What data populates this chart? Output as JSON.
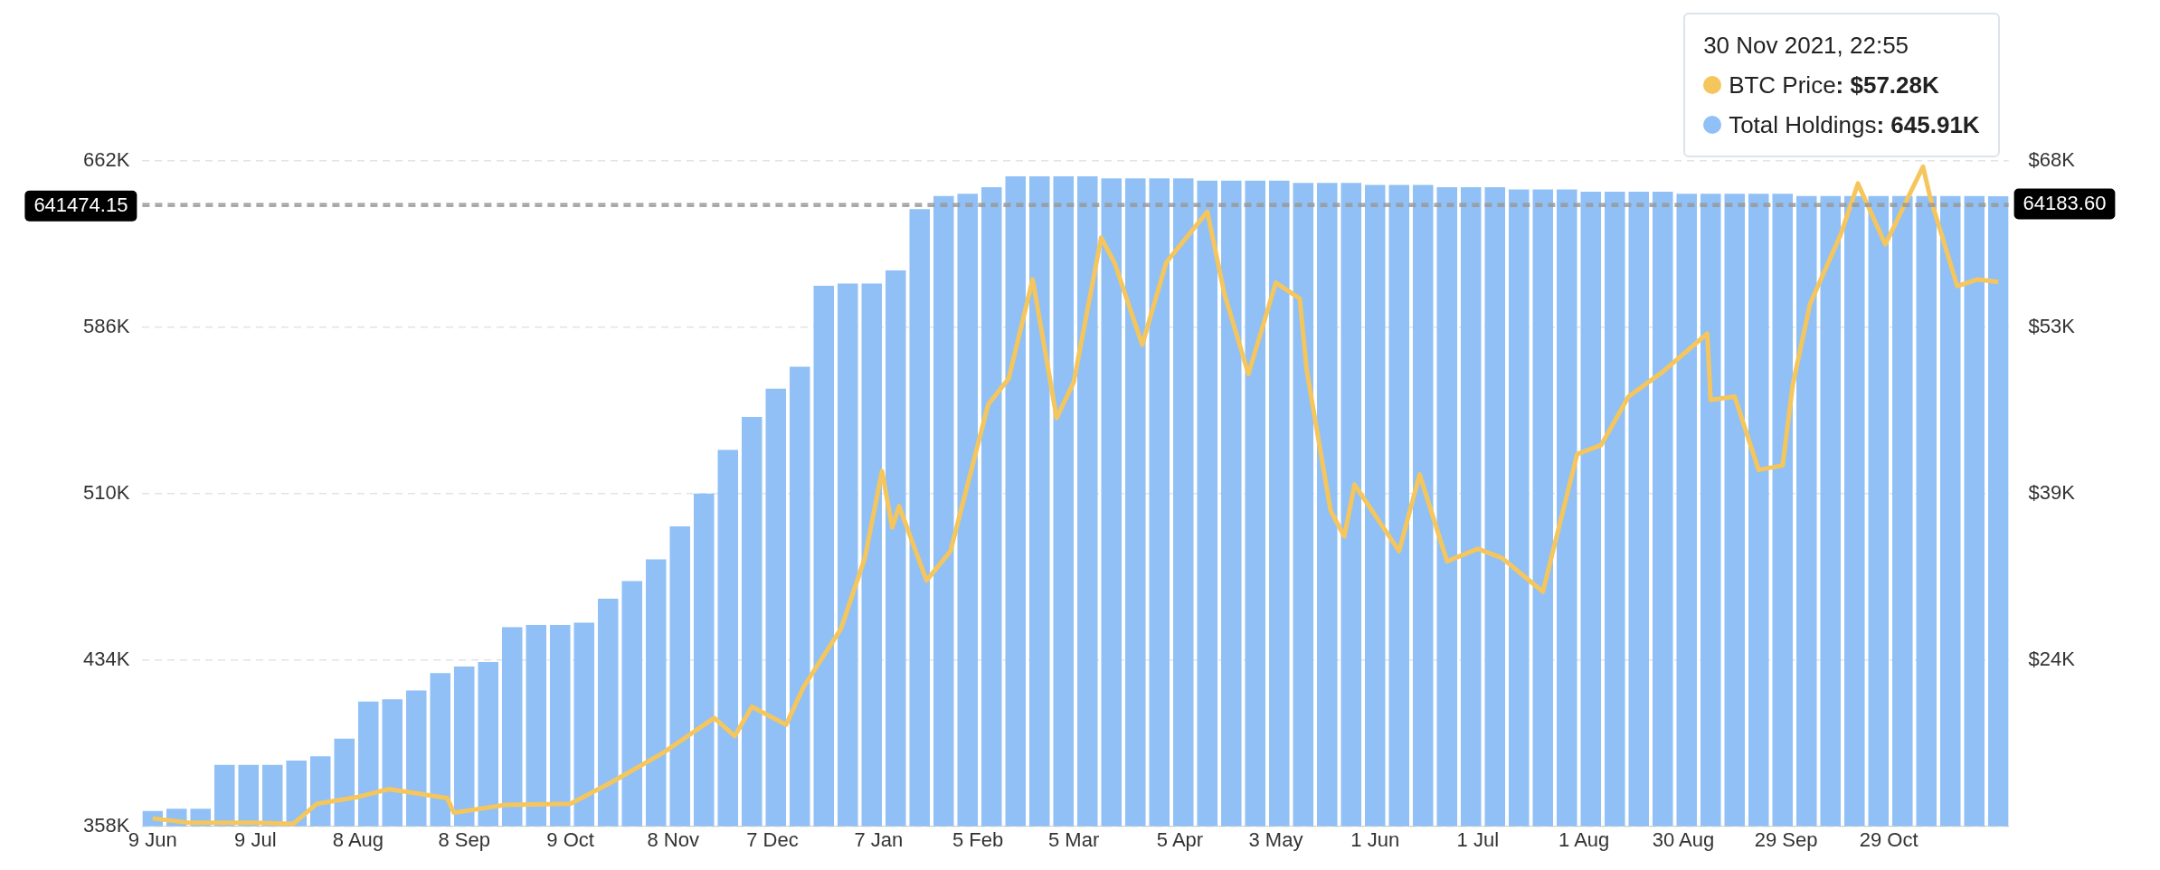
{
  "chart_data": {
    "type": "bar",
    "x": [
      "2020-06-09",
      "2020-06-16",
      "2020-06-23",
      "2020-06-30",
      "2020-07-07",
      "2020-07-14",
      "2020-07-21",
      "2020-07-28",
      "2020-08-04",
      "2020-08-11",
      "2020-08-18",
      "2020-08-25",
      "2020-09-01",
      "2020-09-08",
      "2020-09-15",
      "2020-09-22",
      "2020-09-29",
      "2020-10-06",
      "2020-10-13",
      "2020-10-20",
      "2020-10-27",
      "2020-11-03",
      "2020-11-10",
      "2020-11-17",
      "2020-11-24",
      "2020-12-01",
      "2020-12-08",
      "2020-12-15",
      "2020-12-22",
      "2020-12-29",
      "2021-01-05",
      "2021-01-12",
      "2021-01-19",
      "2021-01-26",
      "2021-02-02",
      "2021-02-09",
      "2021-02-16",
      "2021-02-23",
      "2021-03-02",
      "2021-03-09",
      "2021-03-16",
      "2021-03-23",
      "2021-03-30",
      "2021-04-06",
      "2021-04-13",
      "2021-04-20",
      "2021-04-27",
      "2021-05-04",
      "2021-05-11",
      "2021-05-18",
      "2021-05-25",
      "2021-06-01",
      "2021-06-08",
      "2021-06-15",
      "2021-06-22",
      "2021-06-29",
      "2021-07-06",
      "2021-07-13",
      "2021-07-20",
      "2021-07-27",
      "2021-08-03",
      "2021-08-10",
      "2021-08-17",
      "2021-08-24",
      "2021-08-31",
      "2021-09-07",
      "2021-09-14",
      "2021-09-21",
      "2021-09-28",
      "2021-10-05",
      "2021-10-12",
      "2021-10-19",
      "2021-10-26",
      "2021-11-02",
      "2021-11-09",
      "2021-11-16",
      "2021-11-23",
      "2021-11-30"
    ],
    "series": [
      {
        "name": "BTC Price",
        "type": "line",
        "axis": "y2",
        "color": "#f5c65d",
        "x": [
          "2020-06-09",
          "2020-06-20",
          "2020-07-09",
          "2020-07-20",
          "2020-07-27",
          "2020-08-08",
          "2020-08-17",
          "2020-09-03",
          "2020-09-05",
          "2020-09-20",
          "2020-10-09",
          "2020-10-21",
          "2020-11-05",
          "2020-11-20",
          "2020-11-26",
          "2020-12-01",
          "2020-12-11",
          "2020-12-16",
          "2020-12-27",
          "2021-01-03",
          "2021-01-08",
          "2021-01-11",
          "2021-01-13",
          "2021-01-21",
          "2021-01-28",
          "2021-02-08",
          "2021-02-14",
          "2021-02-21",
          "2021-02-28",
          "2021-03-05",
          "2021-03-13",
          "2021-03-17",
          "2021-03-25",
          "2021-04-01",
          "2021-04-13",
          "2021-04-18",
          "2021-04-25",
          "2021-05-03",
          "2021-05-10",
          "2021-05-12",
          "2021-05-19",
          "2021-05-23",
          "2021-05-26",
          "2021-06-08",
          "2021-06-14",
          "2021-06-22",
          "2021-07-01",
          "2021-07-08",
          "2021-07-20",
          "2021-07-30",
          "2021-08-06",
          "2021-08-14",
          "2021-08-24",
          "2021-09-06",
          "2021-09-07",
          "2021-09-14",
          "2021-09-21",
          "2021-09-28",
          "2021-10-01",
          "2021-10-06",
          "2021-10-15",
          "2021-10-20",
          "2021-10-28",
          "2021-11-08",
          "2021-11-10",
          "2021-11-18",
          "2021-11-24",
          "2021-11-30"
        ],
        "values": [
          9700,
          9300,
          9300,
          9200,
          11000,
          11600,
          12300,
          11500,
          10200,
          10900,
          11000,
          12900,
          15500,
          18600,
          17000,
          19600,
          18000,
          21300,
          26500,
          32800,
          40500,
          35500,
          37400,
          30800,
          33400,
          46400,
          48700,
          57500,
          45200,
          48400,
          61200,
          58900,
          51700,
          59000,
          63500,
          56200,
          49100,
          57200,
          55800,
          49500,
          37000,
          34700,
          39300,
          33400,
          40200,
          32500,
          33600,
          32800,
          29800,
          42000,
          42800,
          47100,
          49300,
          52700,
          46800,
          47100,
          40600,
          41000,
          48200,
          55300,
          61500,
          66000,
          60600,
          67500,
          64900,
          56900,
          57500,
          57280
        ]
      },
      {
        "name": "Total Holdings",
        "color": "#90c0f5",
        "values": [
          365000,
          366000,
          366000,
          386000,
          386000,
          386000,
          388000,
          390000,
          398000,
          415000,
          416000,
          420000,
          428000,
          431000,
          433000,
          449000,
          450000,
          450000,
          451000,
          462000,
          470000,
          480000,
          495000,
          510000,
          530000,
          545000,
          558000,
          568000,
          605000,
          606000,
          606000,
          612000,
          640000,
          646000,
          647000,
          650000,
          655000,
          655000,
          655000,
          655000,
          654000,
          654000,
          654000,
          654000,
          653000,
          653000,
          653000,
          653000,
          652000,
          652000,
          652000,
          651000,
          651000,
          651000,
          650000,
          650000,
          650000,
          649000,
          649000,
          649000,
          648000,
          648000,
          648000,
          648000,
          647000,
          647000,
          647000,
          647000,
          647000,
          646000,
          646000,
          646000,
          646000,
          646000,
          646000,
          646000,
          646000,
          645910
        ]
      }
    ],
    "xlim": [
      "2020-06-06",
      "2021-12-03"
    ],
    "xticks": [
      {
        "value": "2020-06-09",
        "label": "9 Jun"
      },
      {
        "value": "2020-07-09",
        "label": "9 Jul"
      },
      {
        "value": "2020-08-08",
        "label": "8 Aug"
      },
      {
        "value": "2020-09-08",
        "label": "8 Sep"
      },
      {
        "value": "2020-10-09",
        "label": "9 Oct"
      },
      {
        "value": "2020-11-08",
        "label": "8 Nov"
      },
      {
        "value": "2020-12-07",
        "label": "7 Dec"
      },
      {
        "value": "2021-01-07",
        "label": "7 Jan"
      },
      {
        "value": "2021-02-05",
        "label": "5 Feb"
      },
      {
        "value": "2021-03-05",
        "label": "5 Mar"
      },
      {
        "value": "2021-04-05",
        "label": "5 Apr"
      },
      {
        "value": "2021-05-03",
        "label": "3 May"
      },
      {
        "value": "2021-06-01",
        "label": "1 Jun"
      },
      {
        "value": "2021-07-01",
        "label": "1 Jul"
      },
      {
        "value": "2021-08-01",
        "label": "1 Aug"
      },
      {
        "value": "2021-08-30",
        "label": "30 Aug"
      },
      {
        "value": "2021-09-29",
        "label": "29 Sep"
      },
      {
        "value": "2021-10-29",
        "label": "29 Oct"
      }
    ],
    "ylim": [
      358000,
      662000
    ],
    "yticks": [
      {
        "value": 358000,
        "label": "358K"
      },
      {
        "value": 434000,
        "label": "434K"
      },
      {
        "value": 510000,
        "label": "510K"
      },
      {
        "value": 586000,
        "label": "586K"
      },
      {
        "value": 662000,
        "label": "662K"
      }
    ],
    "y2lim": [
      9000,
      68000
    ],
    "y2ticks": [
      {
        "value": 23750,
        "label": "$24K"
      },
      {
        "value": 38500,
        "label": "$39K"
      },
      {
        "value": 53250,
        "label": "$53K"
      },
      {
        "value": 68000,
        "label": "$68K"
      }
    ],
    "ref_lines": [
      {
        "axis": "y",
        "value": 641474.15,
        "label": "641474.15",
        "color": "#999999",
        "line_style": "dashed"
      },
      {
        "axis": "y2",
        "value": 64183.6,
        "label": "64183.60",
        "color": "#999999",
        "line_style": "dashed"
      }
    ],
    "annotations": [
      "30 Nov 2021, 22:55",
      ": $57.28K",
      ": 645.91K"
    ],
    "grid": "y",
    "legend": "top right"
  }
}
